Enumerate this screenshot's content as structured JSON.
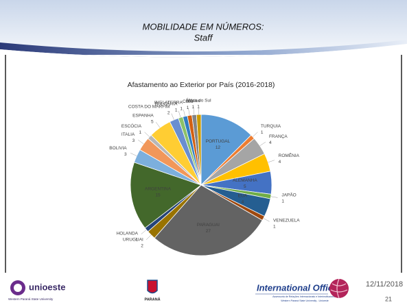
{
  "slide": {
    "title": "MOBILIDADE EM NÚMEROS:",
    "subtitle": "Staff",
    "date": "12/11/2018",
    "page": "21",
    "logos": {
      "university": "unioeste",
      "university_sub": "Western Paraná State University",
      "state": "PARANÁ",
      "office": "International Office",
      "office_sub1": "Assessoria de Relações Internacionais e Interinstitucionais",
      "office_sub2": "Western Paraná State University - Unioeste"
    }
  },
  "chart_data": {
    "type": "pie",
    "title": "Afastamento ao Exterior por País (2016-2018)",
    "categories": [
      "PORTUGAL",
      "TURQUIA",
      "FRANÇA",
      "ROMÊNIA",
      "ALEMANHA",
      "JAPÃO",
      "EUA",
      "VENEZUELA",
      "PARAGUAI",
      "URUGUAI",
      "HOLANDA",
      "ARGENTINA",
      "BOLIVIA",
      "ITALIA",
      "ESCÓCIA",
      "ESPANHA",
      "COSTA DO MARFIM",
      "BULGÁRIA",
      "INGLATERRA",
      "Cuba",
      "México",
      "África do Sul"
    ],
    "values": [
      12,
      1,
      4,
      4,
      5,
      1,
      4,
      1,
      27,
      2,
      1,
      15,
      3,
      3,
      1,
      5,
      2,
      1,
      1,
      1,
      1,
      1
    ],
    "colors": [
      "#5b9bd5",
      "#ed7d31",
      "#a5a5a5",
      "#ffc000",
      "#4472c4",
      "#70ad47",
      "#255e91",
      "#9e480e",
      "#636363",
      "#997300",
      "#264478",
      "#43682b",
      "#7cafdd",
      "#f1975a",
      "#b7b7b7",
      "#ffcd33",
      "#698ed0",
      "#8cc168",
      "#327dc2",
      "#d26012",
      "#848484",
      "#cc9a00"
    ]
  }
}
